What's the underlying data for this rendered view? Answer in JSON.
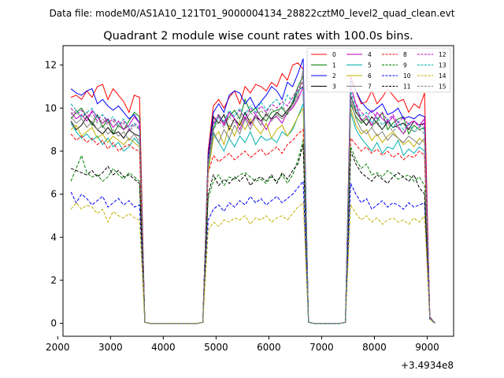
{
  "header": "Data file: modeM0/AS1A10_121T01_9000004134_28822cztM0_level2_quad_clean.evt",
  "chart_data": {
    "type": "line",
    "title": "Quadrant 2 module wise count rates with 100.0s bins.",
    "xlabel": "",
    "ylabel": "",
    "x_offset_label": "+3.4934e8",
    "xlim": [
      2100,
      9500
    ],
    "ylim": [
      -0.6,
      12.9
    ],
    "xticks": [
      2000,
      3000,
      4000,
      5000,
      6000,
      7000,
      8000,
      9000
    ],
    "yticks": [
      0,
      2,
      4,
      6,
      8,
      10,
      12
    ],
    "legend_position": "top-right",
    "x": [
      2250,
      2350,
      2450,
      2550,
      2650,
      2750,
      2850,
      2950,
      3050,
      3150,
      3250,
      3350,
      3450,
      3550,
      3650,
      3750,
      3850,
      3950,
      4050,
      4150,
      4250,
      4350,
      4450,
      4550,
      4650,
      4750,
      4850,
      4950,
      5050,
      5150,
      5250,
      5350,
      5450,
      5550,
      5650,
      5750,
      5850,
      5950,
      6050,
      6150,
      6250,
      6350,
      6450,
      6550,
      6650,
      6750,
      6850,
      6950,
      7050,
      7150,
      7250,
      7350,
      7450,
      7550,
      7650,
      7750,
      7850,
      7950,
      8050,
      8150,
      8250,
      8350,
      8450,
      8550,
      8650,
      8750,
      8850,
      8950,
      9050,
      9150
    ],
    "series": [
      {
        "name": "0",
        "color": "#ff0000",
        "dashed": false,
        "values": [
          10.5,
          10.6,
          10.4,
          10.8,
          10.5,
          11.0,
          11.1,
          10.4,
          10.9,
          10.6,
          10.3,
          9.8,
          10.6,
          10.5,
          0.05,
          0,
          0,
          0,
          0,
          0,
          0,
          0,
          0,
          0,
          0,
          0.05,
          8.0,
          10.1,
          10.4,
          10.0,
          10.5,
          10.8,
          10.2,
          11.0,
          10.7,
          11.1,
          11.0,
          10.8,
          11.2,
          11.0,
          11.6,
          11.3,
          12.0,
          12.1,
          11.8,
          0.05,
          0,
          0,
          0,
          0,
          0,
          0,
          0.05,
          11.5,
          10.8,
          10.2,
          10.3,
          10.8,
          10.2,
          10.5,
          10.9,
          10.6,
          10.3,
          10.4,
          9.8,
          10.2,
          10.0,
          10.7,
          0.3,
          0
        ]
      },
      {
        "name": "1",
        "color": "#008000",
        "dashed": false,
        "values": [
          9.5,
          9.8,
          10.0,
          9.6,
          9.2,
          9.7,
          9.1,
          9.5,
          8.8,
          9.2,
          9.0,
          9.4,
          9.8,
          9.6,
          0.05,
          0,
          0,
          0,
          0,
          0,
          0,
          0,
          0,
          0,
          0,
          0.05,
          7.5,
          9.0,
          9.7,
          9.3,
          9.6,
          9.9,
          9.5,
          10.4,
          9.8,
          10.0,
          9.6,
          9.4,
          9.8,
          9.9,
          10.0,
          9.7,
          10.3,
          11.0,
          11.5,
          0.05,
          0,
          0,
          0,
          0,
          0,
          0,
          0.05,
          10.2,
          9.6,
          9.3,
          9.5,
          9.2,
          9.4,
          9.8,
          9.0,
          9.3,
          9.5,
          9.6,
          8.8,
          9.2,
          9.0,
          9.1,
          0.3,
          0
        ]
      },
      {
        "name": "2",
        "color": "#0000ff",
        "dashed": false,
        "values": [
          10.9,
          10.7,
          10.6,
          10.8,
          10.9,
          10.2,
          10.4,
          10.1,
          9.9,
          10.1,
          9.8,
          9.5,
          9.7,
          9.3,
          0.05,
          0,
          0,
          0,
          0,
          0,
          0,
          0,
          0,
          0,
          0,
          0.05,
          7.8,
          9.8,
          10.2,
          9.8,
          10.6,
          10.8,
          10.7,
          10.2,
          10.5,
          10.0,
          10.3,
          10.6,
          11.0,
          10.8,
          10.4,
          11.2,
          11.0,
          11.6,
          12.3,
          0.05,
          0,
          0,
          0,
          0,
          0,
          0,
          0.05,
          11.3,
          10.8,
          10.3,
          10.0,
          9.8,
          10.0,
          10.2,
          9.7,
          9.8,
          10.0,
          9.5,
          9.6,
          9.5,
          9.7,
          9.6,
          0.3,
          0
        ]
      },
      {
        "name": "3",
        "color": "#000000",
        "dashed": false,
        "values": [
          9.4,
          9.0,
          9.2,
          9.6,
          9.3,
          9.0,
          8.8,
          9.1,
          8.8,
          8.9,
          8.6,
          9.0,
          8.8,
          8.7,
          0.05,
          0,
          0,
          0,
          0,
          0,
          0,
          0,
          0,
          0,
          0,
          0.05,
          7.6,
          9.6,
          9.3,
          9.7,
          9.0,
          9.5,
          9.2,
          9.8,
          9.3,
          9.6,
          9.4,
          9.7,
          9.5,
          9.8,
          9.6,
          9.9,
          10.2,
          10.8,
          11.0,
          0.05,
          0,
          0,
          0,
          0,
          0,
          0,
          0.05,
          10.6,
          9.8,
          9.5,
          9.2,
          9.6,
          9.3,
          9.0,
          9.4,
          9.1,
          9.2,
          9.3,
          9.0,
          9.4,
          9.2,
          9.3,
          0.3,
          0
        ]
      },
      {
        "name": "4",
        "color": "#c000c0",
        "dashed": false,
        "values": [
          9.8,
          9.5,
          9.7,
          9.4,
          9.9,
          9.6,
          9.3,
          9.5,
          9.1,
          9.4,
          9.0,
          9.2,
          9.6,
          9.3,
          0.05,
          0,
          0,
          0,
          0,
          0,
          0,
          0,
          0,
          0,
          0,
          0.05,
          7.4,
          9.3,
          9.6,
          9.2,
          9.8,
          9.5,
          9.0,
          9.6,
          9.2,
          9.7,
          9.4,
          9.0,
          9.5,
          9.6,
          9.3,
          9.8,
          10.0,
          10.4,
          11.0,
          0.05,
          0,
          0,
          0,
          0,
          0,
          0,
          0.05,
          11.0,
          10.2,
          9.4,
          9.6,
          9.2,
          9.8,
          9.5,
          9.3,
          9.6,
          9.1,
          8.8,
          9.3,
          9.4,
          9.2,
          9.5,
          0.3,
          0
        ]
      },
      {
        "name": "5",
        "color": "#00b0b0",
        "dashed": false,
        "values": [
          9.3,
          8.9,
          8.6,
          8.8,
          8.5,
          8.7,
          8.3,
          8.6,
          8.2,
          8.4,
          8.0,
          8.2,
          8.6,
          8.3,
          0.05,
          0,
          0,
          0,
          0,
          0,
          0,
          0,
          0,
          0,
          0,
          0.05,
          7.2,
          8.8,
          8.4,
          8.0,
          8.6,
          8.2,
          8.7,
          8.4,
          8.9,
          8.3,
          8.7,
          8.5,
          8.6,
          8.4,
          8.9,
          8.7,
          9.0,
          9.6,
          10.2,
          0.05,
          0,
          0,
          0,
          0,
          0,
          0,
          0.05,
          9.8,
          9.0,
          8.6,
          8.3,
          8.0,
          8.4,
          7.9,
          8.2,
          8.1,
          8.5,
          7.8,
          8.1,
          7.9,
          8.2,
          8.0,
          0.3,
          0
        ]
      },
      {
        "name": "6",
        "color": "#c0b000",
        "dashed": false,
        "values": [
          9.0,
          9.2,
          8.7,
          8.9,
          9.1,
          8.6,
          8.8,
          8.4,
          8.7,
          8.5,
          8.3,
          8.6,
          8.4,
          8.2,
          0.05,
          0,
          0,
          0,
          0,
          0,
          0,
          0,
          0,
          0,
          0,
          0.05,
          7.0,
          8.6,
          8.9,
          8.3,
          9.2,
          8.7,
          9.4,
          9.0,
          9.5,
          9.1,
          8.8,
          9.3,
          8.6,
          9.0,
          9.2,
          8.7,
          9.1,
          9.6,
          10.0,
          0.05,
          0,
          0,
          0,
          0,
          0,
          0,
          0.05,
          10.0,
          9.2,
          8.8,
          9.0,
          8.5,
          8.8,
          8.4,
          8.7,
          8.9,
          8.6,
          8.3,
          8.5,
          8.2,
          8.6,
          8.4,
          0.3,
          0
        ]
      },
      {
        "name": "7",
        "color": "#808080",
        "dashed": false,
        "values": [
          9.6,
          9.3,
          9.5,
          9.1,
          9.4,
          9.0,
          9.2,
          8.8,
          9.0,
          8.7,
          8.9,
          8.5,
          8.8,
          8.4,
          0.05,
          0,
          0,
          0,
          0,
          0,
          0,
          0,
          0,
          0,
          0,
          0.05,
          7.3,
          8.9,
          8.4,
          9.0,
          8.6,
          9.2,
          8.8,
          9.5,
          9.0,
          9.6,
          9.2,
          9.8,
          9.4,
          9.7,
          9.5,
          9.8,
          10.1,
          10.5,
          11.8,
          0.05,
          0,
          0,
          0,
          0,
          0,
          0,
          0.05,
          10.4,
          9.5,
          9.0,
          8.8,
          9.1,
          8.7,
          8.9,
          8.5,
          8.8,
          8.6,
          8.4,
          8.7,
          8.5,
          8.3,
          8.6,
          0.3,
          0
        ]
      },
      {
        "name": "8",
        "color": "#ff0000",
        "dashed": true,
        "values": [
          8.8,
          8.5,
          8.7,
          8.4,
          8.6,
          8.3,
          8.5,
          8.1,
          8.4,
          8.0,
          8.2,
          8.3,
          8.1,
          8.0,
          0.05,
          0,
          0,
          0,
          0,
          0,
          0,
          0,
          0,
          0,
          0,
          0.05,
          7.0,
          7.8,
          7.5,
          7.7,
          7.9,
          7.6,
          7.8,
          8.0,
          7.7,
          7.9,
          8.1,
          7.8,
          8.0,
          8.2,
          7.9,
          8.3,
          8.5,
          8.8,
          9.0,
          0.05,
          0,
          0,
          0,
          0,
          0,
          0,
          0.05,
          8.6,
          8.3,
          8.0,
          8.2,
          7.9,
          8.1,
          7.8,
          8.0,
          7.7,
          7.9,
          7.6,
          7.8,
          7.7,
          8.0,
          7.8,
          0.3,
          0
        ]
      },
      {
        "name": "9",
        "color": "#008000",
        "dashed": true,
        "values": [
          6.6,
          7.2,
          7.8,
          7.0,
          6.8,
          6.9,
          6.6,
          6.8,
          7.2,
          6.9,
          6.7,
          7.0,
          6.8,
          6.6,
          0.05,
          0,
          0,
          0,
          0,
          0,
          0,
          0,
          0,
          0,
          0,
          0.05,
          5.8,
          6.6,
          6.9,
          6.4,
          6.8,
          6.7,
          6.9,
          7.0,
          6.8,
          6.6,
          6.7,
          6.5,
          6.8,
          6.6,
          6.9,
          6.5,
          6.9,
          7.6,
          8.5,
          0.05,
          0,
          0,
          0,
          0,
          0,
          0,
          0.05,
          8.2,
          7.6,
          7.2,
          7.4,
          6.9,
          7.0,
          6.8,
          7.1,
          6.9,
          6.7,
          6.8,
          6.9,
          6.6,
          6.8,
          6.4,
          0.2,
          0
        ]
      },
      {
        "name": "10",
        "color": "#0000ff",
        "dashed": true,
        "values": [
          6.1,
          5.6,
          6.0,
          5.8,
          5.5,
          5.7,
          5.9,
          5.4,
          5.6,
          5.8,
          5.5,
          5.7,
          5.4,
          5.5,
          0.05,
          0,
          0,
          0,
          0,
          0,
          0,
          0,
          0,
          0,
          0,
          0.05,
          4.8,
          5.3,
          5.5,
          5.2,
          5.6,
          5.4,
          5.7,
          5.5,
          5.9,
          5.6,
          5.8,
          5.5,
          5.7,
          5.9,
          5.6,
          5.8,
          6.0,
          6.3,
          6.6,
          0.05,
          0,
          0,
          0,
          0,
          0,
          0,
          0.05,
          6.5,
          6.0,
          5.6,
          5.8,
          5.3,
          5.5,
          5.7,
          5.4,
          5.6,
          5.5,
          5.3,
          5.6,
          5.4,
          5.5,
          5.6,
          0.2,
          0
        ]
      },
      {
        "name": "11",
        "color": "#000000",
        "dashed": true,
        "values": [
          7.2,
          7.1,
          7.0,
          6.9,
          7.1,
          6.8,
          7.0,
          7.3,
          6.9,
          7.1,
          6.8,
          6.9,
          6.7,
          6.5,
          0.05,
          0,
          0,
          0,
          0,
          0,
          0,
          0,
          0,
          0,
          0,
          0.05,
          6.0,
          6.9,
          6.4,
          6.7,
          6.5,
          6.8,
          6.6,
          6.9,
          6.4,
          6.7,
          6.8,
          6.6,
          6.9,
          6.5,
          7.0,
          6.7,
          7.1,
          7.4,
          8.3,
          0.05,
          0,
          0,
          0,
          0,
          0,
          0,
          0.05,
          8.0,
          7.4,
          7.0,
          6.8,
          6.6,
          6.9,
          6.7,
          6.5,
          6.8,
          7.0,
          6.8,
          6.6,
          6.9,
          6.3,
          6.0,
          0.2,
          0
        ]
      },
      {
        "name": "12",
        "color": "#c000c0",
        "dashed": true,
        "values": [
          10.0,
          9.7,
          9.9,
          9.6,
          9.8,
          9.4,
          9.7,
          9.3,
          9.5,
          9.2,
          9.4,
          9.0,
          9.3,
          9.1,
          0.05,
          0,
          0,
          0,
          0,
          0,
          0,
          0,
          0,
          0,
          0,
          0.05,
          7.6,
          9.4,
          9.7,
          9.3,
          9.8,
          9.6,
          9.9,
          9.5,
          10.0,
          9.7,
          10.1,
          9.8,
          10.2,
          10.0,
          10.3,
          10.1,
          10.5,
          10.9,
          11.2,
          0.05,
          0,
          0,
          0,
          0,
          0,
          0,
          0.05,
          11.0,
          10.2,
          9.8,
          9.6,
          9.9,
          9.5,
          9.8,
          9.4,
          9.7,
          9.3,
          9.6,
          9.2,
          9.4,
          9.1,
          9.3,
          0.3,
          0
        ]
      },
      {
        "name": "13",
        "color": "#00b0b0",
        "dashed": true,
        "values": [
          10.2,
          9.9,
          9.6,
          9.8,
          10.0,
          9.5,
          9.7,
          9.4,
          9.6,
          9.2,
          9.5,
          9.1,
          9.3,
          9.0,
          0.05,
          0,
          0,
          0,
          0,
          0,
          0,
          0,
          0,
          0,
          0,
          0.05,
          7.5,
          9.2,
          9.6,
          9.4,
          9.9,
          9.6,
          10.0,
          9.7,
          10.1,
          9.8,
          10.3,
          9.9,
          10.2,
          10.4,
          10.0,
          10.6,
          10.3,
          10.8,
          11.0,
          0.05,
          0,
          0,
          0,
          0,
          0,
          0,
          0.05,
          10.8,
          10.0,
          9.6,
          9.8,
          9.3,
          9.6,
          9.2,
          9.5,
          9.1,
          9.4,
          9.0,
          9.3,
          8.9,
          9.2,
          9.0,
          0.3,
          0
        ]
      },
      {
        "name": "14",
        "color": "#c0b000",
        "dashed": true,
        "values": [
          5.3,
          5.6,
          5.3,
          5.5,
          5.4,
          5.1,
          5.3,
          4.7,
          5.2,
          5.0,
          4.9,
          5.1,
          4.9,
          4.8,
          0.05,
          0,
          0,
          0,
          0,
          0,
          0,
          0,
          0,
          0,
          0,
          0.05,
          4.3,
          4.7,
          4.5,
          4.8,
          4.7,
          4.9,
          4.8,
          5.0,
          4.6,
          4.9,
          4.8,
          5.0,
          4.7,
          4.9,
          5.0,
          4.8,
          5.1,
          5.4,
          5.6,
          0.05,
          0,
          0,
          0,
          0,
          0,
          0,
          0.05,
          5.5,
          5.1,
          4.8,
          5.0,
          4.7,
          4.9,
          4.6,
          4.8,
          4.9,
          4.7,
          4.8,
          4.6,
          4.9,
          4.7,
          5.0,
          0.2,
          0
        ]
      },
      {
        "name": "15",
        "color": "#808080",
        "dashed": true,
        "values": [
          9.7,
          9.9,
          9.5,
          9.8,
          9.6,
          9.3,
          9.5,
          9.2,
          9.4,
          9.1,
          9.3,
          8.9,
          9.2,
          9.0,
          0.05,
          0,
          0,
          0,
          0,
          0,
          0,
          0,
          0,
          0,
          0,
          0.05,
          7.4,
          9.0,
          9.4,
          9.1,
          9.6,
          9.3,
          9.7,
          9.4,
          9.8,
          9.5,
          9.9,
          9.6,
          10.0,
          9.7,
          10.1,
          9.8,
          10.2,
          10.6,
          11.4,
          0.05,
          0,
          0,
          0,
          0,
          0,
          0,
          0.05,
          10.6,
          9.9,
          9.4,
          9.6,
          9.1,
          9.4,
          9.0,
          9.3,
          8.9,
          9.2,
          8.8,
          9.1,
          8.9,
          9.0,
          8.8,
          0.3,
          0
        ]
      }
    ]
  }
}
